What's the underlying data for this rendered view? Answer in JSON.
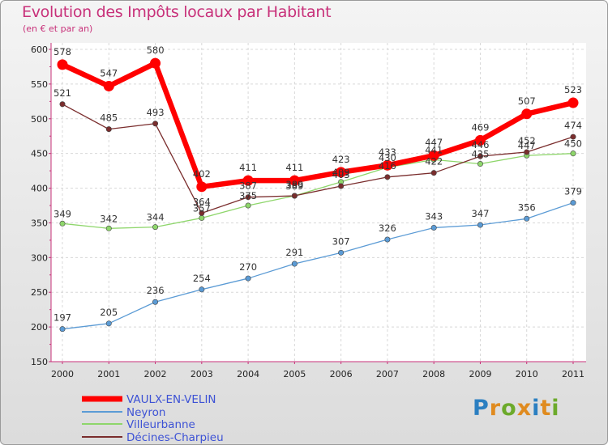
{
  "header": {
    "title": "Evolution des Impôts locaux par Habitant",
    "subtitle": "(en € et par an)"
  },
  "logo": {
    "letters": [
      "P",
      "r",
      "o",
      "x",
      "i",
      "t",
      "i"
    ],
    "colors": [
      "#2b7fc1",
      "#e08b1f",
      "#6caa2b",
      "#e08b1f",
      "#2b7fc1",
      "#e08b1f",
      "#6caa2b"
    ]
  },
  "chart_data": {
    "type": "line",
    "title": "Evolution des Impôts locaux par Habitant",
    "subtitle": "(en € et par an)",
    "xlabel": "",
    "ylabel": "",
    "x": [
      "2000",
      "2001",
      "2002",
      "2003",
      "2004",
      "2005",
      "2006",
      "2007",
      "2008",
      "2009",
      "2010",
      "2011"
    ],
    "ylim": [
      150,
      600
    ],
    "yticks": [
      150,
      200,
      250,
      300,
      350,
      400,
      450,
      500,
      550,
      600
    ],
    "grid": true,
    "legend_position": "bottom-left",
    "series": [
      {
        "name": "VAULX-EN-VELIN",
        "color": "#ff0000",
        "values": [
          578,
          547,
          580,
          402,
          411,
          411,
          423,
          433,
          447,
          469,
          507,
          523
        ]
      },
      {
        "name": "Neyron",
        "color": "#5b9bd5",
        "values": [
          197,
          205,
          236,
          254,
          270,
          291,
          307,
          326,
          343,
          347,
          356,
          379
        ]
      },
      {
        "name": "Villeurbanne",
        "color": "#8ed66b",
        "values": [
          349,
          342,
          344,
          357,
          375,
          389,
          409,
          430,
          441,
          435,
          447,
          450
        ]
      },
      {
        "name": "Décines-Charpieu",
        "color": "#7a2d2d",
        "values": [
          521,
          485,
          493,
          364,
          387,
          389,
          403,
          416,
          422,
          446,
          452,
          474
        ]
      }
    ]
  }
}
